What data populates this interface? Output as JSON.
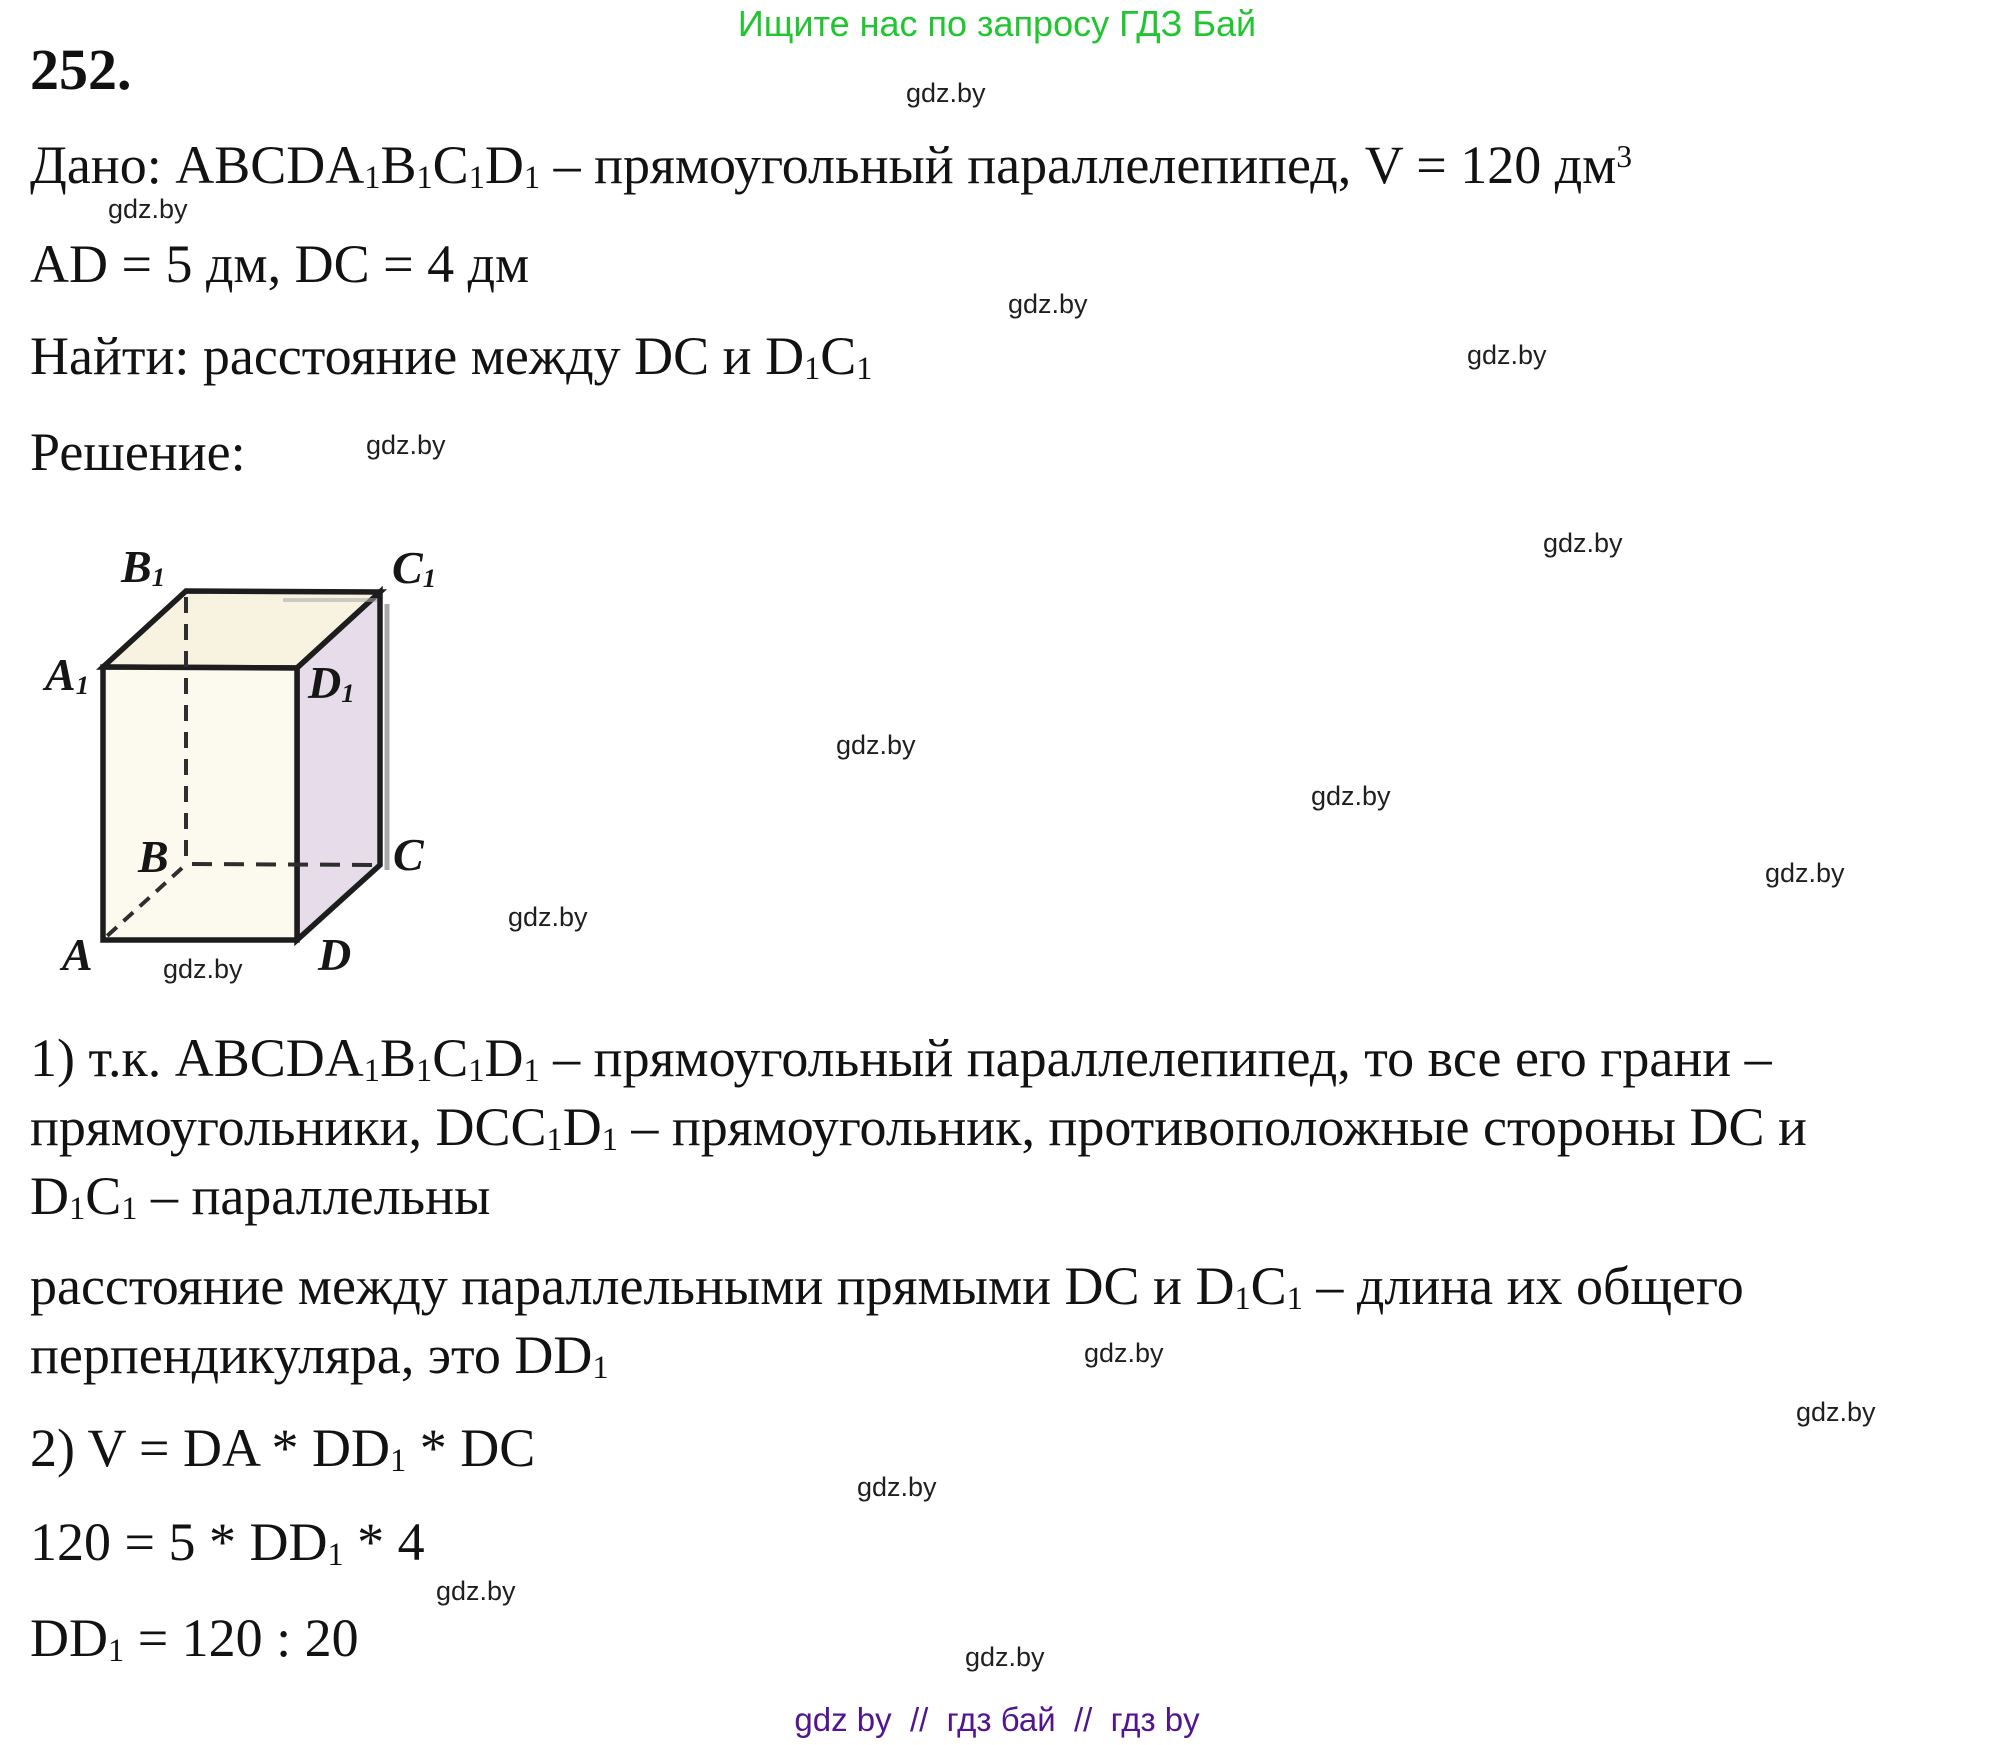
{
  "colors": {
    "promo-green": "#21c52f",
    "footer-purple": "#511591",
    "watermark-ink": "#1f1f1f",
    "face-top": "#f8f2e1",
    "face-front": "#fcf9ee",
    "face-right": "#e7dcea",
    "edge": "#1d1d1d",
    "shadow-gray": "#a9a9a9"
  },
  "promo": {
    "text": "Ищите нас по запросу ГДЗ Бай"
  },
  "watermark": {
    "text": "gdz.by"
  },
  "problem": {
    "number": "252.",
    "given": "Дано: ABCDA_1B_1C_1D_1 – прямоугольный параллелепипед, V = 120 дм^3",
    "dimensions": "AD = 5 дм, DC = 4 дм",
    "find": "Найти: расстояние между DC и D_1C_1",
    "solution_label": "Решение:"
  },
  "figure": {
    "labels": {
      "A": "A",
      "B": "B",
      "C": "C",
      "D": "D",
      "A1": "A_1",
      "B1": "B_1",
      "C1": "C_1",
      "D1": "D_1"
    }
  },
  "solution": {
    "step1": [
      "1) т.к. ABCDA_1B_1C_1D_1 – прямоугольный параллелепипед, то все его грани –",
      "прямоугольники, DCC_1D_1 – прямоугольник, противоположные стороны DC и",
      "D_1C_1 – параллельны"
    ],
    "distance_note": [
      "расстояние между параллельными прямыми DC и D_1C_1 – длина их общего",
      "перпендикуляра, это DD_1"
    ],
    "step2": "2) V = DA * DD_1 * DC",
    "eq1": "120 = 5 * DD_1 * 4",
    "eq2": "DD_1 = 120 : 20"
  },
  "footer": {
    "text": "gdz by  //  гдз бай  //  гдз by"
  }
}
